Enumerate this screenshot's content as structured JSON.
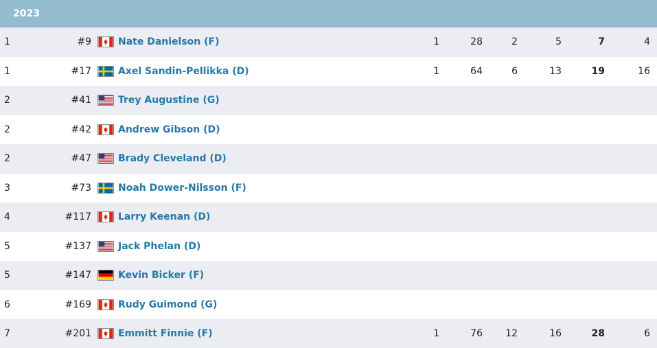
{
  "header": {
    "year": "2023",
    "color": "#93bccf"
  },
  "colors": {
    "name_link": "#2479a9",
    "row_alt": "#ebedf2"
  },
  "rows": [
    {
      "round": "1",
      "pick": "#9",
      "flag": "flag-canada-icon",
      "name": "Nate Danielson (F)",
      "stats": [
        "1",
        "28",
        "2",
        "5",
        "7",
        "4"
      ]
    },
    {
      "round": "1",
      "pick": "#17",
      "flag": "flag-sweden-icon",
      "name": "Axel Sandin-Pellikka (D)",
      "stats": [
        "1",
        "64",
        "6",
        "13",
        "19",
        "16"
      ]
    },
    {
      "round": "2",
      "pick": "#41",
      "flag": "flag-usa-icon",
      "name": "Trey Augustine (G)",
      "stats": [
        "",
        "",
        "",
        "",
        "",
        ""
      ]
    },
    {
      "round": "2",
      "pick": "#42",
      "flag": "flag-canada-icon",
      "name": "Andrew Gibson (D)",
      "stats": [
        "",
        "",
        "",
        "",
        "",
        ""
      ]
    },
    {
      "round": "2",
      "pick": "#47",
      "flag": "flag-usa-icon",
      "name": "Brady Cleveland (D)",
      "stats": [
        "",
        "",
        "",
        "",
        "",
        ""
      ]
    },
    {
      "round": "3",
      "pick": "#73",
      "flag": "flag-sweden-icon",
      "name": "Noah Dower-Nilsson (F)",
      "stats": [
        "",
        "",
        "",
        "",
        "",
        ""
      ]
    },
    {
      "round": "4",
      "pick": "#117",
      "flag": "flag-canada-icon",
      "name": "Larry Keenan (D)",
      "stats": [
        "",
        "",
        "",
        "",
        "",
        ""
      ]
    },
    {
      "round": "5",
      "pick": "#137",
      "flag": "flag-usa-icon",
      "name": "Jack Phelan (D)",
      "stats": [
        "",
        "",
        "",
        "",
        "",
        ""
      ]
    },
    {
      "round": "5",
      "pick": "#147",
      "flag": "flag-germany-icon",
      "name": "Kevin Bicker (F)",
      "stats": [
        "",
        "",
        "",
        "",
        "",
        ""
      ]
    },
    {
      "round": "6",
      "pick": "#169",
      "flag": "flag-canada-icon",
      "name": "Rudy Guimond (G)",
      "stats": [
        "",
        "",
        "",
        "",
        "",
        ""
      ]
    },
    {
      "round": "7",
      "pick": "#201",
      "flag": "flag-canada-icon",
      "name": "Emmitt Finnie (F)",
      "stats": [
        "1",
        "76",
        "12",
        "16",
        "28",
        "6"
      ]
    }
  ]
}
